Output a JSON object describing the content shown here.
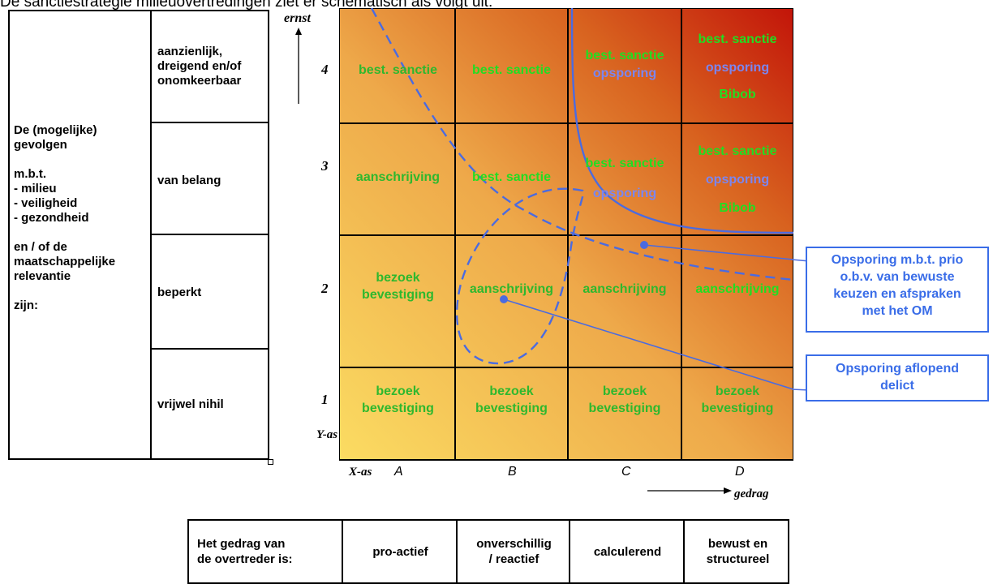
{
  "caption": "De sanctiestrategie milieuovertredingen ziet er schematisch als volgt uit:",
  "left_table": {
    "main_label": "De (mogelijke)\ngevolgen\n\nm.b.t.\n- milieu\n- veiligheid\n- gezondheid\n\nen / of de\nmaatschappelijke\nrelevantie\n\nzijn:",
    "rows": [
      "aanzienlijk,\ndreigend en/of\nonomkeerbaar",
      "van belang",
      "beperkt",
      "vrijwel nihil"
    ]
  },
  "axes": {
    "y_title": "ernst",
    "y_axis_name": "Y-as",
    "y_ticks": [
      "4",
      "3",
      "2",
      "1"
    ],
    "x_axis_name": "X-as",
    "x_ticks": [
      "A",
      "B",
      "C",
      "D"
    ],
    "x_title": "gedrag"
  },
  "grid": {
    "row4": {
      "A": "best. sanctie",
      "B": "best. sanctie",
      "C1": "best. sanctie",
      "C2": "opsporing",
      "D1": "best. sanctie",
      "D2": "opsporing",
      "D3": "Bibob"
    },
    "row3": {
      "A": "aanschrijving",
      "B": "best. sanctie",
      "C1": "best. sanctie",
      "C2": "opsporing",
      "D1": "best. sanctie",
      "D2": "opsporing",
      "D3": "Bibob"
    },
    "row2": {
      "A": "bezoek\nbevestiging",
      "B": "aanschrijving",
      "C": "aanschrijving",
      "D": "aanschrijving"
    },
    "row1": {
      "A": "bezoek\nbevestiging",
      "B": "bezoek\nbevestiging",
      "C": "bezoek\nbevestiging",
      "D": "bezoek\nbevestiging"
    }
  },
  "callouts": {
    "prio": "Opsporing m.b.t. prio\no.b.v. van bewuste\nkeuzen en afspraken\nmet het OM",
    "aflopend": "Opsporing aflopend\ndelict"
  },
  "bottom_table": {
    "header": "Het gedrag van\nde overtreder is:",
    "cells": [
      "pro-actief",
      "onverschillig\n/ reactief",
      "calculerend",
      "bewust en\nstructureel"
    ]
  },
  "colors": {
    "grid_light": "#fbd55a",
    "grid_mid": "#e08a2a",
    "grid_dark": "#c41a0a",
    "text_green": "#22dd22",
    "text_blue": "#7b86f0",
    "line_blue": "#4b6be0"
  }
}
